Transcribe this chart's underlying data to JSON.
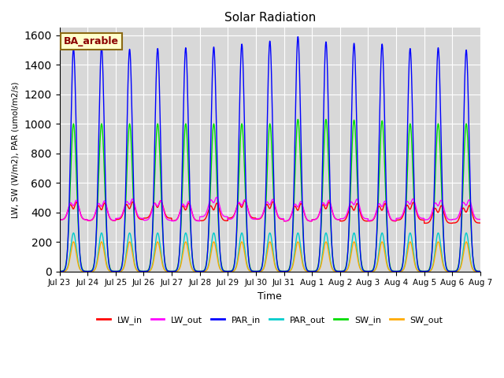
{
  "title": "Solar Radiation",
  "ylabel": "LW, SW (W/m2), PAR (umol/m2/s)",
  "xlabel": "Time",
  "annotation": "BA_arable",
  "ylim": [
    0,
    1650
  ],
  "yticks": [
    0,
    200,
    400,
    600,
    800,
    1000,
    1200,
    1400,
    1600
  ],
  "bg_color": "#d8d8d8",
  "series": {
    "LW_in": {
      "color": "#ff0000",
      "lw": 1.0
    },
    "LW_out": {
      "color": "#ff00ff",
      "lw": 1.0
    },
    "PAR_in": {
      "color": "#0000ff",
      "lw": 1.0
    },
    "PAR_out": {
      "color": "#00cccc",
      "lw": 1.0
    },
    "SW_in": {
      "color": "#00dd00",
      "lw": 1.0
    },
    "SW_out": {
      "color": "#ffaa00",
      "lw": 1.0
    }
  },
  "xtick_labels": [
    "Jul 23",
    "Jul 24",
    "Jul 25",
    "Jul 26",
    "Jul 27",
    "Jul 28",
    "Jul 29",
    "Jul 30",
    "Jul 31",
    "Aug 1",
    "Aug 2",
    "Aug 3",
    "Aug 4",
    "Aug 5",
    "Aug 6",
    "Aug 7"
  ],
  "n_days": 15,
  "pts_per_day": 288
}
